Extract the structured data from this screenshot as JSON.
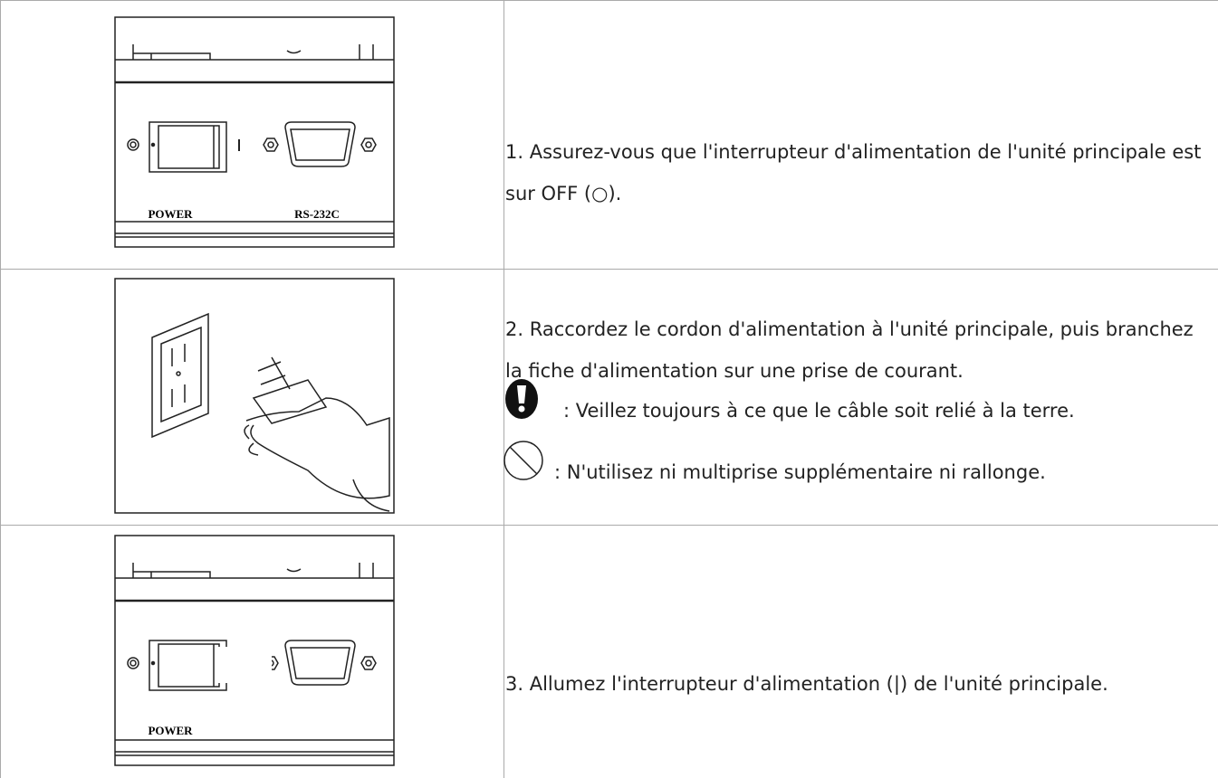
{
  "table": {
    "rows": [
      {
        "illustration": {
          "labels": [
            "POWER",
            "RS-232C"
          ]
        },
        "text": "1. Assurez-vous que l'interrupteur d'alimentation de l'unité principale est sur OFF (○)."
      },
      {
        "text": "2. Raccordez le cordon d'alimentation à l'unité principale, puis branchez la fiche d'alimentation sur une prise de courant.",
        "notes": [
          ": Veillez toujours à ce que le câble soit relié à la terre.",
          ": N'utilisez ni multiprise supplémentaire ni rallonge."
        ]
      },
      {
        "illustration": {
          "labels": [
            "POWER"
          ]
        },
        "text": "3. Allumez l'interrupteur d'alimentation (|) de l'unité principale."
      }
    ]
  }
}
